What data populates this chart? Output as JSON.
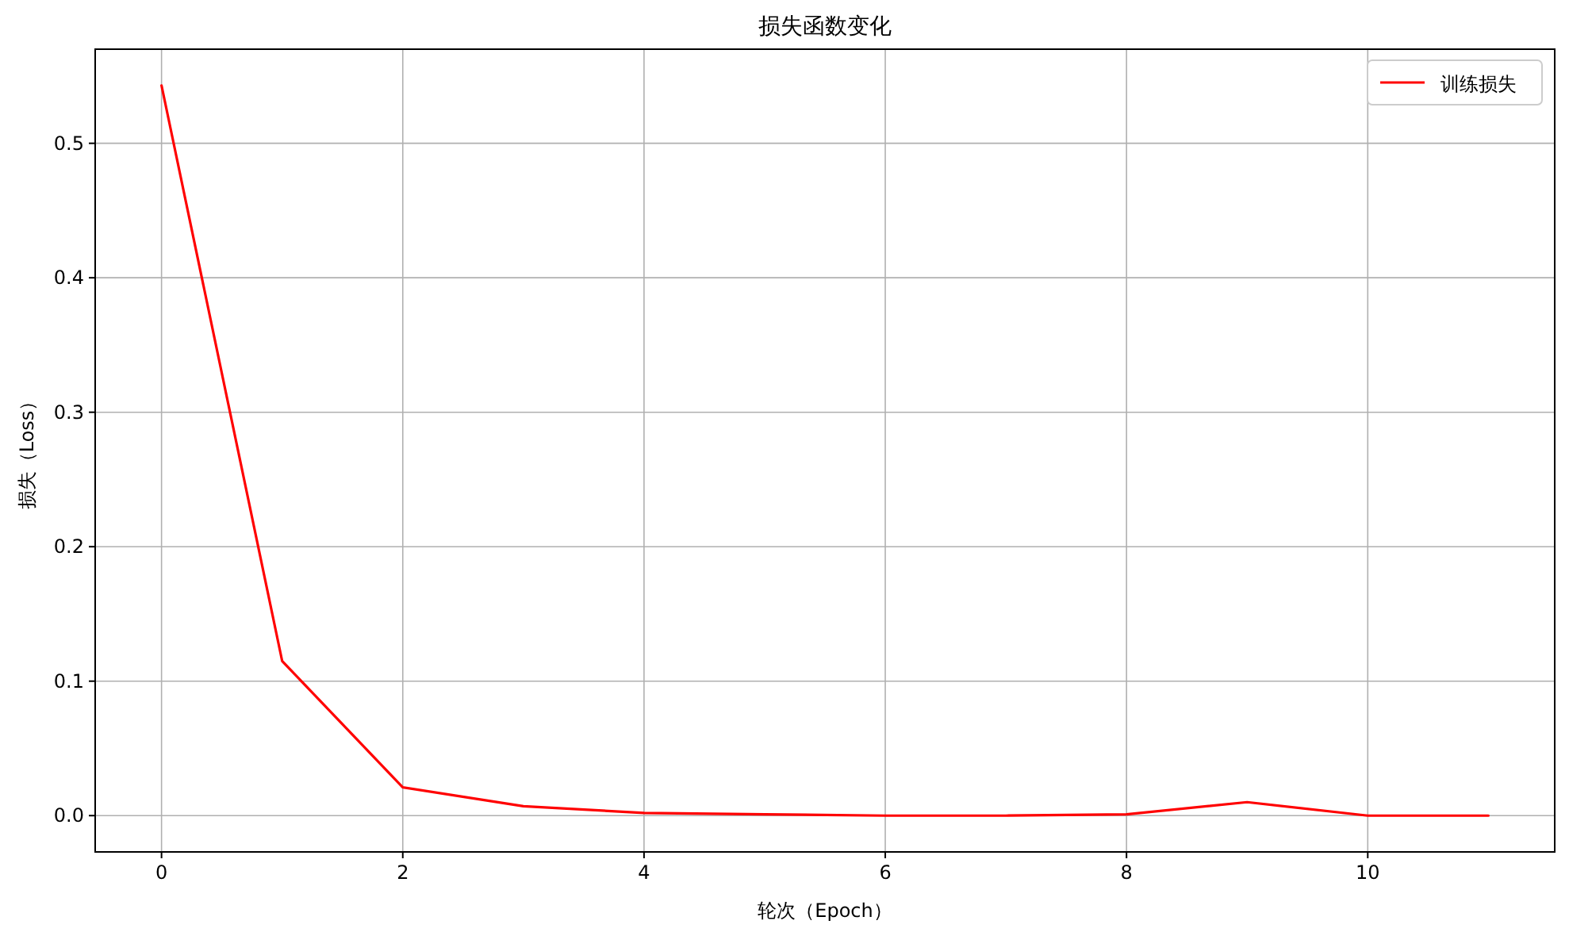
{
  "chart_data": {
    "type": "line",
    "title": "损失函数变化",
    "xlabel": "轮次（Epoch）",
    "ylabel": "损失（Loss）",
    "x": [
      0,
      1,
      2,
      3,
      4,
      5,
      6,
      7,
      8,
      9,
      10,
      11
    ],
    "series": [
      {
        "name": "训练损失",
        "color": "#ff0000",
        "values": [
          0.543,
          0.115,
          0.021,
          0.007,
          0.002,
          0.001,
          0.0,
          0.0,
          0.001,
          0.01,
          0.0,
          0.0
        ]
      }
    ],
    "xlim": [
      -0.55,
      11.55
    ],
    "xticks": [
      0,
      2,
      4,
      6,
      8,
      10
    ],
    "ylim": [
      -0.027,
      0.57
    ],
    "yticks": [
      {
        "value": 0,
        "label": "0.0"
      },
      0.1,
      0.2,
      0.3,
      0.4,
      0.5
    ],
    "grid": true,
    "legend": "top right",
    "marker": "none",
    "line_style": "solid"
  }
}
